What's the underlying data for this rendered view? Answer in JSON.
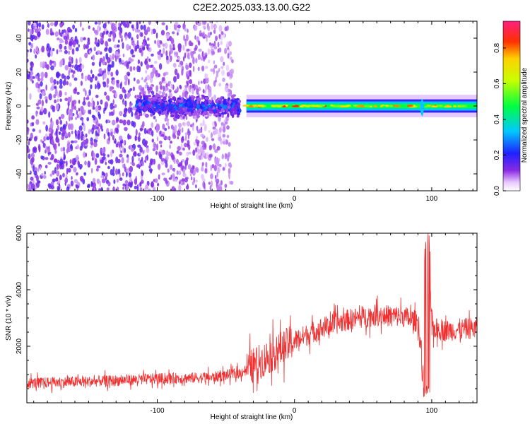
{
  "title": "C2E2.2025.033.13.00.G22",
  "colors": {
    "snr_line": "#f03030",
    "axis": "#000000"
  },
  "chart_data": [
    {
      "type": "heatmap",
      "xlabel": "Height of straight line (km)",
      "ylabel": "Frequency (Hz)",
      "xlim": [
        -195,
        133
      ],
      "ylim": [
        -50,
        50
      ],
      "x_ticks": [
        -100,
        0,
        100
      ],
      "y_ticks": [
        -40,
        -20,
        0,
        20,
        40
      ],
      "colorbar": {
        "label": "Normalized spectral amplitude",
        "range": [
          0.0,
          0.95
        ],
        "ticks": [
          "0.0",
          "0.2",
          "0.4",
          "0.6",
          "0.8"
        ],
        "colormap": "rainbow (purple-blue-cyan-green-yellow-red-magenta)"
      },
      "features": [
        {
          "x_range": [
            -195,
            -45
          ],
          "frequency_range": [
            -50,
            50
          ],
          "amplitude": 0.05,
          "description": "scattered noise"
        },
        {
          "x_range": [
            -115,
            -40
          ],
          "frequency_center": 0,
          "frequency_halfwidth": 8,
          "amplitude": 0.2
        },
        {
          "x_range": [
            -35,
            133
          ],
          "frequency_center": 0,
          "frequency_halfwidth": 3,
          "amplitude": 0.5
        },
        {
          "x": 93,
          "frequency_range": [
            -12,
            6
          ],
          "amplitude": 0.35,
          "description": "spike"
        }
      ]
    },
    {
      "type": "line",
      "xlabel": "Height of straight line (km)",
      "ylabel": "SNR (10 * v/v)",
      "xlim": [
        -195,
        133
      ],
      "ylim": [
        0,
        6000
      ],
      "x_ticks": [
        -100,
        0,
        100
      ],
      "y_ticks": [
        2000,
        4000,
        6000
      ],
      "series": [
        {
          "x": [
            -195,
            -150,
            -100,
            -60,
            -40,
            -20,
            0,
            20,
            40,
            60,
            80,
            90,
            95,
            97,
            100,
            110,
            133
          ],
          "y": [
            700,
            750,
            850,
            900,
            1050,
            1600,
            2200,
            2650,
            2950,
            3100,
            3050,
            2850,
            500,
            6000,
            2650,
            2550,
            2650
          ]
        }
      ]
    }
  ]
}
